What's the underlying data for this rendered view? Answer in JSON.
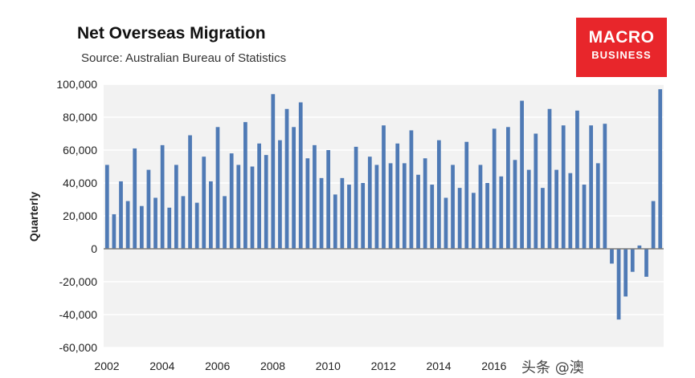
{
  "header": {
    "title": "Net Overseas Migration",
    "subtitle": "Source: Australian Bureau of Statistics"
  },
  "logo": {
    "line1": "MACRO",
    "line2": "BUSINESS"
  },
  "watermark": "头条 @澳",
  "colors": {
    "bar": "#4f7ab5",
    "logo_bg": "#e8262b",
    "plot_bg": "#f2f2f2"
  },
  "chart_data": {
    "type": "bar",
    "title": "Net Overseas Migration",
    "subtitle": "Source: Australian Bureau of Statistics",
    "ylabel": "Quarterly",
    "xlabel": "",
    "ylim": [
      -60000,
      100000
    ],
    "yticks": [
      100000,
      80000,
      60000,
      40000,
      20000,
      0,
      -20000,
      -40000,
      -60000
    ],
    "ytick_labels": [
      "100,000",
      "80,000",
      "60,000",
      "40,000",
      "20,000",
      "0",
      "-20,000",
      "-40,000",
      "-60,000"
    ],
    "xtick_labels": [
      "2002",
      "2004",
      "2006",
      "2008",
      "2010",
      "2012",
      "2014",
      "2016"
    ],
    "grid": true,
    "legend": "none",
    "series": [
      {
        "values": [
          51000,
          21000,
          41000,
          29000,
          61000,
          26000,
          48000,
          31000,
          63000,
          25000,
          51000,
          32000,
          69000,
          28000,
          56000,
          41000,
          74000,
          32000,
          58000,
          51000,
          77000,
          50000,
          64000,
          57000,
          94000,
          66000,
          85000,
          74000,
          89000,
          55000,
          63000,
          43000,
          60000,
          33000,
          43000,
          39000,
          62000,
          40000,
          56000,
          51000,
          75000,
          52000,
          64000,
          52000,
          72000,
          45000,
          55000,
          39000,
          66000,
          31000,
          51000,
          37000,
          65000,
          34000,
          51000,
          40000,
          73000,
          44000,
          74000,
          54000,
          90000,
          48000,
          70000,
          37000,
          85000,
          48000,
          75000,
          46000,
          84000,
          39000,
          75000,
          52000,
          76000,
          -9000,
          -43000,
          -29000,
          -14000,
          2000,
          -17000,
          29000,
          97000
        ]
      }
    ]
  }
}
